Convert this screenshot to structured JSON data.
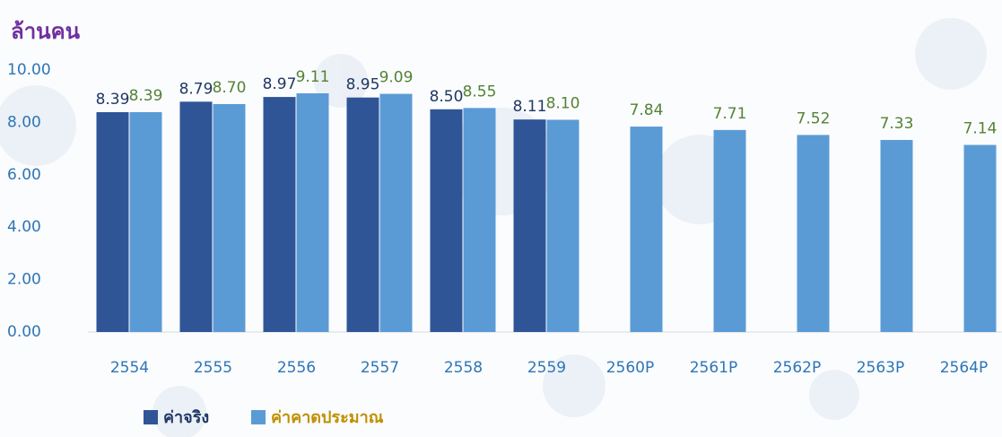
{
  "chart_data": {
    "type": "bar",
    "title": "ล้านคน",
    "categories": [
      "2554",
      "2555",
      "2556",
      "2557",
      "2558",
      "2559",
      "2560P",
      "2561P",
      "2562P",
      "2563P",
      "2564P"
    ],
    "series": [
      {
        "name": "ค่าจริง",
        "color": "#2f5597",
        "label_color": "#1f3864",
        "values": [
          8.39,
          8.79,
          8.97,
          8.95,
          8.5,
          8.11,
          null,
          null,
          null,
          null,
          null
        ],
        "value_labels": [
          "8.39",
          "8.79",
          "8.97",
          "8.95",
          "8.50",
          "8.11",
          null,
          null,
          null,
          null,
          null
        ]
      },
      {
        "name": "ค่าคาดประมาณ",
        "color": "#5b9bd5",
        "label_color": "#548235",
        "values": [
          8.39,
          8.7,
          9.11,
          9.09,
          8.55,
          8.1,
          7.84,
          7.71,
          7.52,
          7.33,
          7.14
        ],
        "value_labels": [
          "8.39",
          "8.70",
          "9.11",
          "9.09",
          "8.55",
          "8.10",
          "7.84",
          "7.71",
          "7.52",
          "7.33",
          "7.14"
        ]
      }
    ],
    "ylim": [
      0,
      10
    ],
    "yticks": [
      {
        "value": 0,
        "label": "0.00"
      },
      {
        "value": 2,
        "label": "2.00"
      },
      {
        "value": 4,
        "label": "4.00"
      },
      {
        "value": 6,
        "label": "6.00"
      },
      {
        "value": 8,
        "label": "8.00"
      },
      {
        "value": 10,
        "label": "10.00"
      }
    ],
    "grid": false
  }
}
